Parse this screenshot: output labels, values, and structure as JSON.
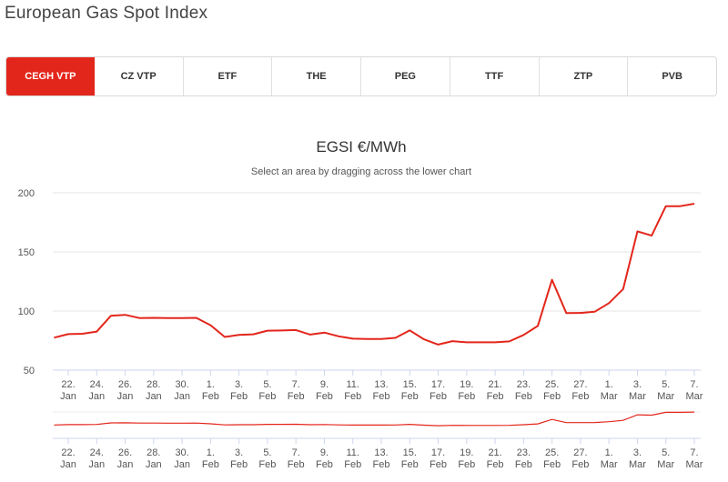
{
  "page": {
    "title": "European Gas Spot Index"
  },
  "tabs": [
    {
      "label": "CEGH VTP",
      "active": true
    },
    {
      "label": "CZ VTP",
      "active": false
    },
    {
      "label": "ETF",
      "active": false
    },
    {
      "label": "THE",
      "active": false
    },
    {
      "label": "PEG",
      "active": false
    },
    {
      "label": "TTF",
      "active": false
    },
    {
      "label": "ZTP",
      "active": false
    },
    {
      "label": "PVB",
      "active": false
    }
  ],
  "colors": {
    "accent": "#e3261b",
    "line": "#e3261b",
    "grid": "#e6e6e6"
  },
  "chart_data": {
    "type": "line",
    "title": "EGSI €/MWh",
    "subtitle": "Select an area by dragging across the lower chart",
    "xlabel": "",
    "ylabel": "",
    "ylim": [
      50,
      200
    ],
    "yticks": [
      50,
      100,
      150,
      200
    ],
    "grid": true,
    "x": [
      "2022-01-21",
      "2022-01-22",
      "2022-01-23",
      "2022-01-24",
      "2022-01-25",
      "2022-01-26",
      "2022-01-27",
      "2022-01-28",
      "2022-01-29",
      "2022-01-30",
      "2022-01-31",
      "2022-02-01",
      "2022-02-02",
      "2022-02-03",
      "2022-02-04",
      "2022-02-05",
      "2022-02-06",
      "2022-02-07",
      "2022-02-08",
      "2022-02-09",
      "2022-02-10",
      "2022-02-11",
      "2022-02-12",
      "2022-02-13",
      "2022-02-14",
      "2022-02-15",
      "2022-02-16",
      "2022-02-17",
      "2022-02-18",
      "2022-02-19",
      "2022-02-20",
      "2022-02-21",
      "2022-02-22",
      "2022-02-23",
      "2022-02-24",
      "2022-02-25",
      "2022-02-26",
      "2022-02-27",
      "2022-02-28",
      "2022-03-01",
      "2022-03-02",
      "2022-03-03",
      "2022-03-04",
      "2022-03-05",
      "2022-03-06",
      "2022-03-07"
    ],
    "series": [
      {
        "values": [
          77.5,
          80.5,
          80.8,
          82.6,
          96.0,
          96.8,
          94.1,
          94.2,
          94.0,
          94.0,
          94.2,
          88.0,
          78.1,
          79.8,
          80.3,
          83.4,
          83.5,
          83.9,
          80.1,
          81.8,
          78.6,
          76.6,
          76.4,
          76.4,
          77.3,
          83.6,
          76.1,
          71.6,
          74.5,
          73.5,
          73.5,
          73.5,
          74.3,
          79.8,
          87.4,
          126.5,
          98.3,
          98.4,
          99.4,
          106.7,
          118.6,
          167.4,
          163.8,
          188.7,
          188.7,
          190.8
        ]
      }
    ],
    "xticks": [
      {
        "date": "2022-01-22",
        "day": "22.",
        "month": "Jan"
      },
      {
        "date": "2022-01-24",
        "day": "24.",
        "month": "Jan"
      },
      {
        "date": "2022-01-26",
        "day": "26.",
        "month": "Jan"
      },
      {
        "date": "2022-01-28",
        "day": "28.",
        "month": "Jan"
      },
      {
        "date": "2022-01-30",
        "day": "30.",
        "month": "Jan"
      },
      {
        "date": "2022-02-01",
        "day": "1.",
        "month": "Feb"
      },
      {
        "date": "2022-02-03",
        "day": "3.",
        "month": "Feb"
      },
      {
        "date": "2022-02-05",
        "day": "5.",
        "month": "Feb"
      },
      {
        "date": "2022-02-07",
        "day": "7.",
        "month": "Feb"
      },
      {
        "date": "2022-02-09",
        "day": "9.",
        "month": "Feb"
      },
      {
        "date": "2022-02-11",
        "day": "11.",
        "month": "Feb"
      },
      {
        "date": "2022-02-13",
        "day": "13.",
        "month": "Feb"
      },
      {
        "date": "2022-02-15",
        "day": "15.",
        "month": "Feb"
      },
      {
        "date": "2022-02-17",
        "day": "17.",
        "month": "Feb"
      },
      {
        "date": "2022-02-19",
        "day": "19.",
        "month": "Feb"
      },
      {
        "date": "2022-02-21",
        "day": "21.",
        "month": "Feb"
      },
      {
        "date": "2022-02-23",
        "day": "23.",
        "month": "Feb"
      },
      {
        "date": "2022-02-25",
        "day": "25.",
        "month": "Feb"
      },
      {
        "date": "2022-02-27",
        "day": "27.",
        "month": "Feb"
      },
      {
        "date": "2022-03-01",
        "day": "1.",
        "month": "Mar"
      },
      {
        "date": "2022-03-03",
        "day": "3.",
        "month": "Mar"
      },
      {
        "date": "2022-03-05",
        "day": "5.",
        "month": "Mar"
      },
      {
        "date": "2022-03-07",
        "day": "7.",
        "month": "Mar"
      }
    ]
  }
}
